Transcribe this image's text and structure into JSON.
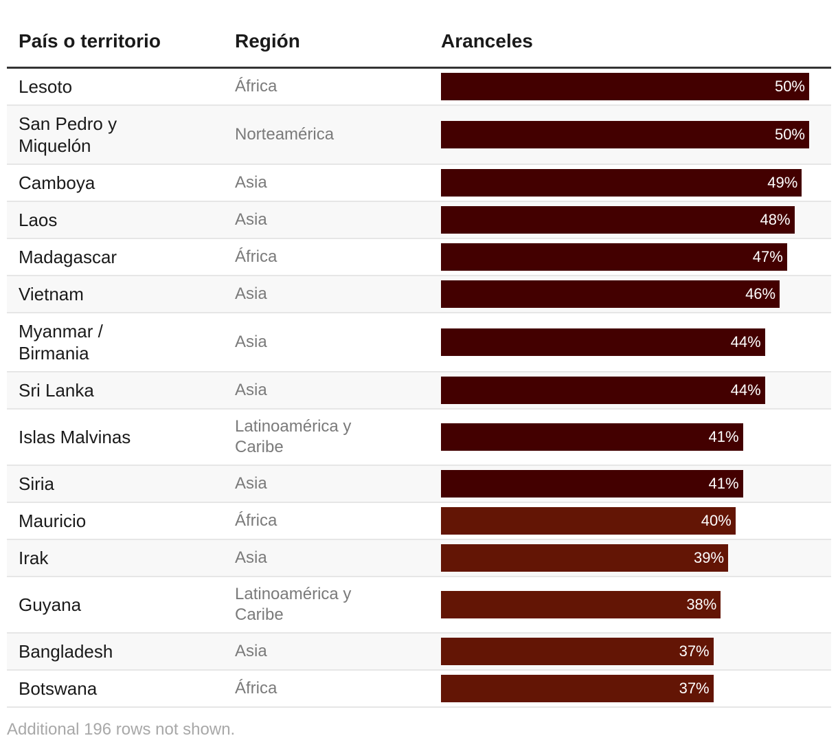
{
  "headers": {
    "country": "País o territorio",
    "region": "Región",
    "tariff": "Aranceles"
  },
  "colors": {
    "high": "#430000",
    "mid": "#631505"
  },
  "footer": "Additional 196 rows not shown.",
  "chart_data": {
    "type": "table",
    "title": "",
    "columns": [
      "País o territorio",
      "Región",
      "Aranceles"
    ],
    "xlim": [
      0,
      50
    ],
    "rows": [
      {
        "country": "Lesoto",
        "region": "África",
        "value": 50,
        "label": "50%"
      },
      {
        "country": "San Pedro y Miquelón",
        "region": "Norteamérica",
        "value": 50,
        "label": "50%"
      },
      {
        "country": "Camboya",
        "region": "Asia",
        "value": 49,
        "label": "49%"
      },
      {
        "country": "Laos",
        "region": "Asia",
        "value": 48,
        "label": "48%"
      },
      {
        "country": "Madagascar",
        "region": "África",
        "value": 47,
        "label": "47%"
      },
      {
        "country": "Vietnam",
        "region": "Asia",
        "value": 46,
        "label": "46%"
      },
      {
        "country": "Myanmar / Birmania",
        "region": "Asia",
        "value": 44,
        "label": "44%"
      },
      {
        "country": "Sri Lanka",
        "region": "Asia",
        "value": 44,
        "label": "44%"
      },
      {
        "country": "Islas Malvinas",
        "region": "Latinoamérica y Caribe",
        "value": 41,
        "label": "41%"
      },
      {
        "country": "Siria",
        "region": "Asia",
        "value": 41,
        "label": "41%"
      },
      {
        "country": "Mauricio",
        "region": "África",
        "value": 40,
        "label": "40%"
      },
      {
        "country": "Irak",
        "region": "Asia",
        "value": 39,
        "label": "39%"
      },
      {
        "country": "Guyana",
        "region": "Latinoamérica y Caribe",
        "value": 38,
        "label": "38%"
      },
      {
        "country": "Bangladesh",
        "region": "Asia",
        "value": 37,
        "label": "37%"
      },
      {
        "country": "Botswana",
        "region": "África",
        "value": 37,
        "label": "37%"
      }
    ]
  }
}
